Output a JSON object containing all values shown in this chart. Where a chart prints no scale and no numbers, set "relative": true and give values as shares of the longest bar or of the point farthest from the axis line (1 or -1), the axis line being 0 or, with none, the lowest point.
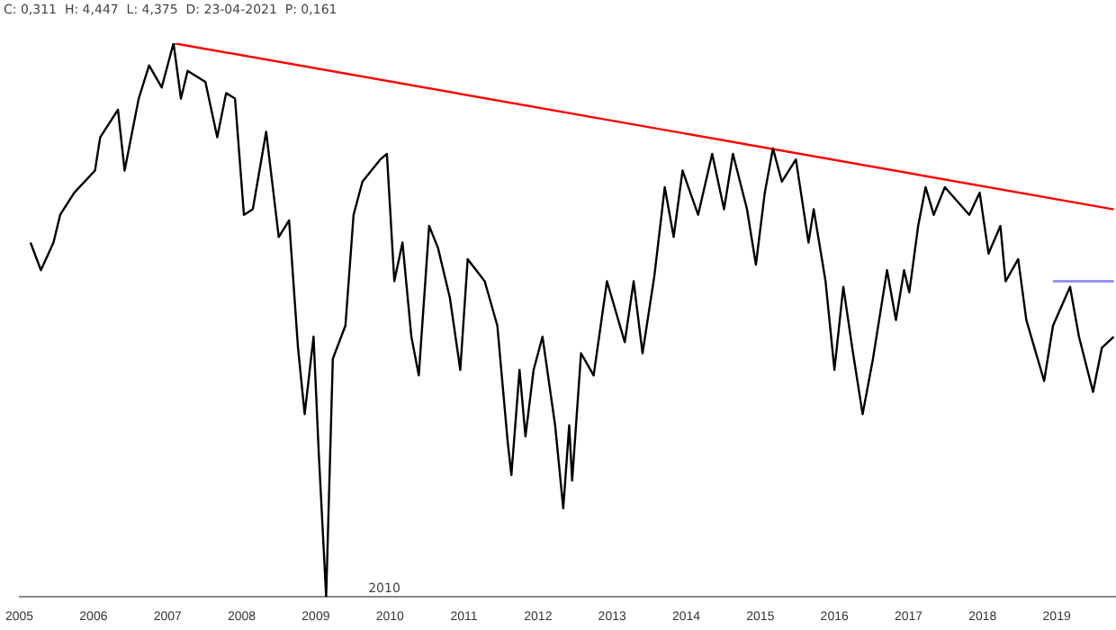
{
  "chart_data": {
    "type": "line",
    "relative": true,
    "xlim": [
      2005,
      2019.8
    ],
    "xticks": [
      2005,
      2006,
      2007,
      2008,
      2009,
      2010,
      2011,
      2012,
      2013,
      2014,
      2015,
      2016,
      2017,
      2018,
      2019
    ],
    "grid": false,
    "legend": false,
    "marker": "none",
    "line_style": "solid",
    "annotations": [
      "C: 0,311  H: 4,447  L: 4,375  D: 23-04-2021  P: 0,161",
      "2010"
    ],
    "series": [
      {
        "color": "#000000",
        "x": [
          2005.15,
          2005.29,
          2005.46,
          2005.55,
          2005.74,
          2006.02,
          2006.09,
          2006.33,
          2006.42,
          2006.61,
          2006.75,
          2006.92,
          2007.08,
          2007.18,
          2007.27,
          2007.51,
          2007.67,
          2007.79,
          2007.91,
          2008.03,
          2008.15,
          2008.33,
          2008.5,
          2008.64,
          2008.76,
          2008.85,
          2008.97,
          2009.04,
          2009.14,
          2009.23,
          2009.4,
          2009.51,
          2009.63,
          2009.87,
          2009.96,
          2010.06,
          2010.17,
          2010.29,
          2010.39,
          2010.53,
          2010.65,
          2010.81,
          2010.95,
          2011.05,
          2011.28,
          2011.45,
          2011.59,
          2011.64,
          2011.75,
          2011.83,
          2011.94,
          2012.06,
          2012.23,
          2012.34,
          2012.42,
          2012.46,
          2012.58,
          2012.75,
          2012.93,
          2013.17,
          2013.29,
          2013.41,
          2013.57,
          2013.71,
          2013.83,
          2013.95,
          2014.16,
          2014.35,
          2014.51,
          2014.63,
          2014.82,
          2014.94,
          2015.06,
          2015.17,
          2015.29,
          2015.48,
          2015.65,
          2015.72,
          2015.88,
          2016,
          2016.12,
          2016.24,
          2016.38,
          2016.52,
          2016.71,
          2016.83,
          2016.94,
          2017.01,
          2017.13,
          2017.23,
          2017.34,
          2017.49,
          2017.82,
          2017.96,
          2018.08,
          2018.24,
          2018.31,
          2018.48,
          2018.59,
          2018.83,
          2018.95,
          2019.18,
          2019.3,
          2019.49,
          2019.61,
          2019.77
        ],
        "values": [
          0.64,
          0.59,
          0.64,
          0.69,
          0.73,
          0.77,
          0.83,
          0.88,
          0.77,
          0.9,
          0.96,
          0.92,
          1,
          0.9,
          0.95,
          0.93,
          0.83,
          0.91,
          0.9,
          0.69,
          0.7,
          0.84,
          0.65,
          0.68,
          0.45,
          0.33,
          0.47,
          0.26,
          0,
          0.43,
          0.49,
          0.69,
          0.75,
          0.79,
          0.8,
          0.57,
          0.64,
          0.47,
          0.4,
          0.67,
          0.63,
          0.54,
          0.41,
          0.61,
          0.57,
          0.49,
          0.28,
          0.22,
          0.41,
          0.29,
          0.41,
          0.47,
          0.31,
          0.16,
          0.31,
          0.21,
          0.44,
          0.4,
          0.57,
          0.46,
          0.57,
          0.44,
          0.58,
          0.74,
          0.65,
          0.77,
          0.69,
          0.8,
          0.7,
          0.8,
          0.7,
          0.6,
          0.73,
          0.81,
          0.75,
          0.79,
          0.64,
          0.7,
          0.57,
          0.41,
          0.56,
          0.45,
          0.33,
          0.43,
          0.59,
          0.5,
          0.59,
          0.55,
          0.67,
          0.74,
          0.69,
          0.74,
          0.69,
          0.73,
          0.62,
          0.67,
          0.57,
          0.61,
          0.5,
          0.39,
          0.49,
          0.56,
          0.47,
          0.37,
          0.45,
          0.47
        ]
      },
      {
        "type": "line",
        "color": "#ff0000",
        "x": [
          2007.08,
          2019.77
        ],
        "values": [
          1,
          0.7
        ]
      },
      {
        "type": "line",
        "color": "#8080ff",
        "x": [
          2018.95,
          2019.77
        ],
        "values": [
          0.57,
          0.57
        ]
      }
    ]
  }
}
